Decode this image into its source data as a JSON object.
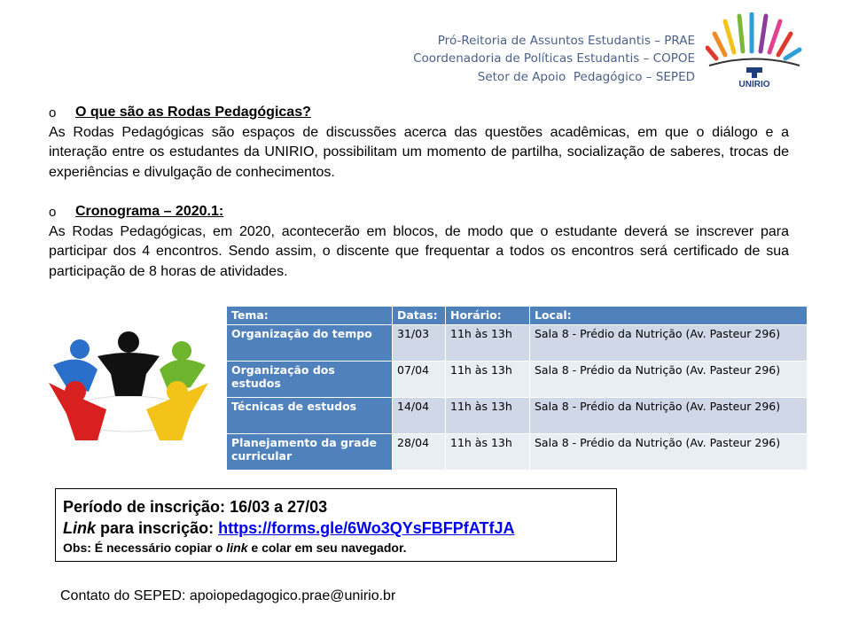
{
  "header": {
    "lines": [
      "Pró-Reitoria de Assuntos Estudantis – PRAE",
      "Coordenadoria de Políticas Estudantis – COPOE",
      "Setor de Apoio  Pedagógico – SEPED"
    ],
    "logo_text": "UNIRIO"
  },
  "sections": [
    {
      "bullet": "o",
      "title": "O que são as Rodas Pedagógicas?",
      "text": "As Rodas Pedagógicas são espaços de discussões acerca das questões acadêmicas, em que o diálogo e a interação entre os estudantes da UNIRIO, possibilitam um momento de partilha, socialização de saberes, trocas de experiências e divulgação de conhecimentos."
    },
    {
      "bullet": "o",
      "title": "Cronograma – 2020.1:",
      "text": "As Rodas Pedagógicas, em 2020, acontecerão em blocos, de modo que o estudante deverá se inscrever para participar dos 4 encontros. Sendo assim, o discente que frequentar a todos os encontros será certificado de sua participação de 8 horas de atividades."
    }
  ],
  "table": {
    "headers": [
      "Tema:",
      "Datas:",
      "Horário:",
      "Local:"
    ],
    "rows": [
      [
        "Organização do tempo",
        "31/03",
        "11h às 13h",
        "Sala 8 - Prédio da Nutrição (Av. Pasteur 296)"
      ],
      [
        "Organização dos estudos",
        "07/04",
        "11h às 13h",
        "Sala 8 - Prédio da Nutrição (Av. Pasteur 296)"
      ],
      [
        "Técnicas de estudos",
        "14/04",
        "11h às 13h",
        "Sala 8 - Prédio da Nutrição (Av. Pasteur 296)"
      ],
      [
        "Planejamento da grade curricular",
        "28/04",
        "11h às 13h",
        "Sala 8 - Prédio da Nutrição (Av. Pasteur 296)"
      ]
    ],
    "header_color": "#4f81bd"
  },
  "registration": {
    "period_label": "Período de inscrição:",
    "period": "16/03 a 27/03",
    "link_label_italic": "Link",
    "link_label_rest": " para inscrição:",
    "link": "https://forms.gle/6Wo3QYsFBFPfATfJA",
    "obs_prefix": "Obs: É necessário copiar o ",
    "obs_italic": "link",
    "obs_suffix": " e colar em seu navegador."
  },
  "contact": "Contato do SEPED: apoiopedagogico.prae@unirio.br"
}
